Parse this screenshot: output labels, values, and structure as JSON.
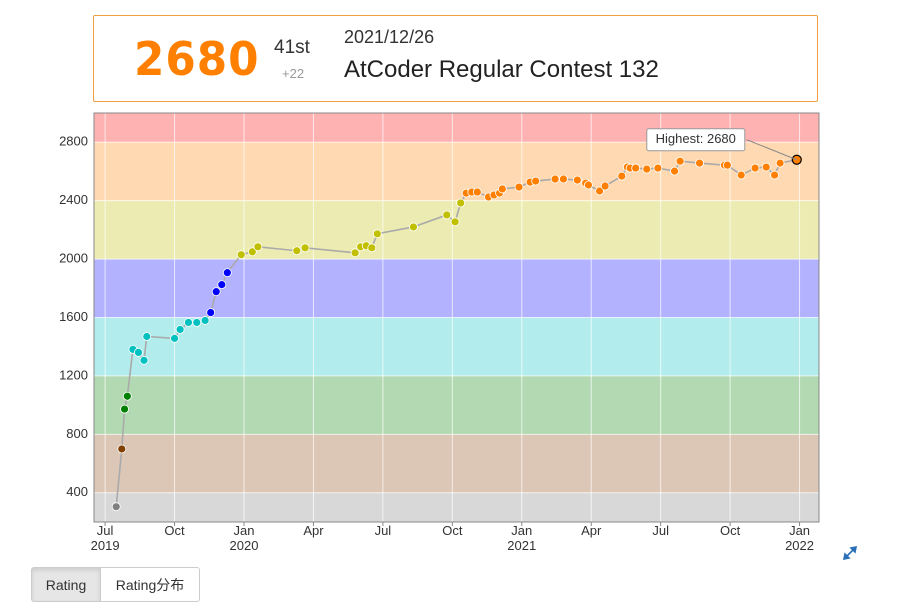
{
  "header": {
    "rating": "2680",
    "rank": "41st",
    "diff": "+22",
    "date": "2021/12/26",
    "contest": "AtCoder Regular Contest 132"
  },
  "tabs": [
    "Rating",
    "Rating分布"
  ],
  "chart_data": {
    "type": "line",
    "annotation": "Highest: 2680",
    "x": [
      2019.54,
      2019.56,
      2019.57,
      2019.58,
      2019.6,
      2019.62,
      2019.64,
      2019.65,
      2019.75,
      2019.77,
      2019.8,
      2019.83,
      2019.86,
      2019.88,
      2019.9,
      2019.92,
      2019.94,
      2019.99,
      2020.03,
      2020.05,
      2020.19,
      2020.22,
      2020.4,
      2020.42,
      2020.44,
      2020.46,
      2020.48,
      2020.61,
      2020.73,
      2020.76,
      2020.78,
      2020.8,
      2020.82,
      2020.84,
      2020.88,
      2020.9,
      2020.92,
      2020.93,
      2020.99,
      2021.03,
      2021.05,
      2021.12,
      2021.15,
      2021.2,
      2021.23,
      2021.24,
      2021.28,
      2021.3,
      2021.36,
      2021.38,
      2021.39,
      2021.41,
      2021.45,
      2021.49,
      2021.55,
      2021.57,
      2021.64,
      2021.73,
      2021.74,
      2021.79,
      2021.84,
      2021.88,
      2021.91,
      2021.93,
      2021.99
    ],
    "values": [
      305,
      700,
      973,
      1061,
      1382,
      1361,
      1307,
      1470,
      1457,
      1518,
      1566,
      1566,
      1580,
      1634,
      1777,
      1825,
      1907,
      2030,
      2050,
      2084,
      2057,
      2077,
      2043,
      2084,
      2091,
      2077,
      2173,
      2220,
      2302,
      2255,
      2384,
      2452,
      2459,
      2459,
      2425,
      2439,
      2452,
      2480,
      2493,
      2527,
      2534,
      2548,
      2548,
      2541,
      2520,
      2507,
      2466,
      2500,
      2568,
      2630,
      2623,
      2623,
      2616,
      2623,
      2602,
      2670,
      2657,
      2643,
      2643,
      2575,
      2623,
      2630,
      2575,
      2657,
      2680
    ],
    "xlim": [
      2019.46,
      2022.07
    ],
    "xticks": [
      {
        "value": 2019.5,
        "label": "Jul\n2019"
      },
      {
        "value": 2019.75,
        "label": "Oct"
      },
      {
        "value": 2020.0,
        "label": "Jan\n2020"
      },
      {
        "value": 2020.25,
        "label": "Apr"
      },
      {
        "value": 2020.5,
        "label": "Jul"
      },
      {
        "value": 2020.75,
        "label": "Oct"
      },
      {
        "value": 2021.0,
        "label": "Jan\n2021"
      },
      {
        "value": 2021.25,
        "label": "Apr"
      },
      {
        "value": 2021.5,
        "label": "Jul"
      },
      {
        "value": 2021.75,
        "label": "Oct"
      },
      {
        "value": 2022.0,
        "label": "Jan\n2022"
      }
    ],
    "ylim": [
      200,
      3000
    ],
    "yticks": [
      400,
      800,
      1200,
      1600,
      2000,
      2400,
      2800
    ],
    "grid": true,
    "line_color": "#aaaaaa",
    "bands": [
      {
        "from": 0,
        "to": 400,
        "color": "#d8d8d8",
        "point": "#808080"
      },
      {
        "from": 400,
        "to": 800,
        "color": "#dcc6b5",
        "point": "#804000"
      },
      {
        "from": 800,
        "to": 1200,
        "color": "#b2d9b2",
        "point": "#008000"
      },
      {
        "from": 1200,
        "to": 1600,
        "color": "#b2ecec",
        "point": "#00c0c0"
      },
      {
        "from": 1600,
        "to": 2000,
        "color": "#b2b2ff",
        "point": "#0000ff"
      },
      {
        "from": 2000,
        "to": 2400,
        "color": "#ececb2",
        "point": "#c0c000"
      },
      {
        "from": 2400,
        "to": 2800,
        "color": "#ffd9b2",
        "point": "#ff8000"
      },
      {
        "from": 2800,
        "to": 3200,
        "color": "#ffb2b2",
        "point": "#ff0000"
      }
    ]
  }
}
